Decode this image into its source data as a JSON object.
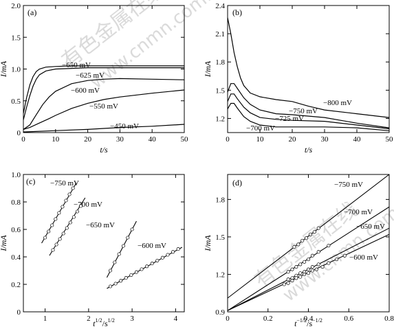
{
  "watermark": {
    "cn": "有色金属在线",
    "url": "www.cnmn.com.cn"
  },
  "chart_data": [
    {
      "panel": "(a)",
      "type": "line",
      "xlabel": "t/s",
      "ylabel": "I/mA",
      "xlim": [
        0,
        50
      ],
      "ylim": [
        0,
        2.0
      ],
      "xticks": [
        0,
        10,
        20,
        30,
        40,
        50
      ],
      "yticks": [
        0,
        0.5,
        1.0,
        1.5,
        2.0
      ],
      "ytick_labels": [
        "0",
        "0.5",
        "1.0",
        "1.5",
        "2.0"
      ],
      "series": [
        {
          "name": "−650 mV",
          "x": [
            0,
            1,
            2,
            3,
            4,
            5,
            7,
            10,
            15,
            20,
            30,
            40,
            50
          ],
          "y": [
            0.3,
            0.55,
            0.75,
            0.88,
            0.96,
            1.0,
            1.03,
            1.04,
            1.05,
            1.05,
            1.05,
            1.05,
            1.05
          ]
        },
        {
          "name": "−625 mV",
          "x": [
            0,
            1,
            2,
            3,
            4,
            5,
            7,
            10,
            15,
            20,
            30,
            40,
            50
          ],
          "y": [
            0.2,
            0.4,
            0.58,
            0.73,
            0.84,
            0.91,
            0.97,
            1.0,
            1.01,
            1.02,
            1.02,
            1.02,
            1.02
          ]
        },
        {
          "name": "−600 mV",
          "x": [
            0,
            2,
            4,
            6,
            8,
            10,
            15,
            20,
            25,
            30,
            40,
            50
          ],
          "y": [
            0.05,
            0.12,
            0.28,
            0.44,
            0.56,
            0.65,
            0.77,
            0.82,
            0.84,
            0.85,
            0.84,
            0.83
          ]
        },
        {
          "name": "−550 mV",
          "x": [
            0,
            2,
            5,
            8,
            10,
            15,
            20,
            25,
            30,
            40,
            50
          ],
          "y": [
            0.05,
            0.08,
            0.15,
            0.22,
            0.27,
            0.38,
            0.46,
            0.52,
            0.56,
            0.62,
            0.67
          ]
        },
        {
          "name": "−450 mV",
          "x": [
            0,
            10,
            20,
            30,
            40,
            50
          ],
          "y": [
            0.01,
            0.03,
            0.05,
            0.08,
            0.1,
            0.13
          ]
        }
      ]
    },
    {
      "panel": "(b)",
      "type": "line",
      "xlabel": "t/s",
      "ylabel": "I/mA",
      "xlim": [
        0,
        50
      ],
      "ylim": [
        1.05,
        2.4
      ],
      "xticks": [
        0,
        10,
        20,
        30,
        40,
        50
      ],
      "yticks": [
        1.2,
        1.5,
        1.8,
        2.1,
        2.4
      ],
      "ytick_labels": [
        "1.2",
        "1.5",
        "1.8",
        "2.1",
        "2.4"
      ],
      "series": [
        {
          "name": "−800 mV",
          "x": [
            0,
            1,
            2,
            3,
            4,
            5,
            7,
            10,
            15,
            20,
            25,
            30,
            40,
            50
          ],
          "y": [
            2.27,
            2.1,
            1.9,
            1.75,
            1.63,
            1.55,
            1.47,
            1.43,
            1.4,
            1.38,
            1.33,
            1.29,
            1.25,
            1.21
          ]
        },
        {
          "name": "−750 mV",
          "x": [
            0,
            1,
            2,
            3,
            5,
            7,
            10,
            15,
            20,
            30,
            40,
            50
          ],
          "y": [
            1.48,
            1.57,
            1.57,
            1.52,
            1.42,
            1.35,
            1.29,
            1.25,
            1.24,
            1.21,
            1.15,
            1.1
          ]
        },
        {
          "name": "−725 mV",
          "x": [
            0,
            1,
            2,
            3,
            5,
            7,
            10,
            15,
            20,
            30,
            40,
            50
          ],
          "y": [
            1.38,
            1.46,
            1.46,
            1.41,
            1.32,
            1.26,
            1.21,
            1.19,
            1.18,
            1.17,
            1.13,
            1.09
          ]
        },
        {
          "name": "−700 mV",
          "x": [
            0,
            1,
            2,
            3,
            5,
            7,
            10,
            15,
            20,
            30,
            40,
            50
          ],
          "y": [
            1.3,
            1.36,
            1.36,
            1.31,
            1.22,
            1.17,
            1.13,
            1.11,
            1.11,
            1.11,
            1.1,
            1.07
          ]
        }
      ]
    },
    {
      "panel": "(c)",
      "type": "scatter",
      "xlabel": "t^{1/2}/s^{1/2}",
      "xlabel_base": "t",
      "xlabel_sup": "1/2",
      "xlabel_unit": "/s",
      "xlabel_unit_sup": "1/2",
      "ylabel": "I/mA",
      "xlim": [
        0.5,
        4.2
      ],
      "ylim": [
        0,
        1.0
      ],
      "xticks": [
        1,
        2,
        3,
        4
      ],
      "yticks": [
        0,
        0.2,
        0.4,
        0.6,
        0.8,
        1.0
      ],
      "ytick_labels": [
        "0",
        "0.2",
        "0.4",
        "0.6",
        "0.8",
        "1.0"
      ],
      "series": [
        {
          "name": "−750 mV",
          "line_x": [
            0.92,
            1.72
          ],
          "line_y": [
            0.5,
            0.94
          ],
          "points_x": [
            1.0,
            1.08,
            1.16,
            1.24,
            1.32,
            1.4,
            1.48,
            1.56,
            1.64
          ],
          "points_y": [
            0.54,
            0.585,
            0.63,
            0.675,
            0.72,
            0.765,
            0.81,
            0.855,
            0.9
          ]
        },
        {
          "name": "−700 mV",
          "line_x": [
            1.1,
            1.92
          ],
          "line_y": [
            0.41,
            0.83
          ],
          "points_x": [
            1.18,
            1.26,
            1.34,
            1.42,
            1.5,
            1.58,
            1.66,
            1.74,
            1.82
          ],
          "points_y": [
            0.45,
            0.49,
            0.53,
            0.57,
            0.61,
            0.65,
            0.69,
            0.73,
            0.77
          ]
        },
        {
          "name": "−650 mV",
          "line_x": [
            2.42,
            3.1
          ],
          "line_y": [
            0.25,
            0.66
          ],
          "points_x": [
            2.5,
            2.6,
            2.7,
            2.8,
            2.9,
            3.0
          ],
          "points_y": [
            0.3,
            0.36,
            0.42,
            0.48,
            0.54,
            0.6
          ]
        },
        {
          "name": "−600 mV",
          "line_x": [
            2.42,
            4.15
          ],
          "line_y": [
            0.17,
            0.47
          ],
          "points_x": [
            2.5,
            2.62,
            2.74,
            2.86,
            2.98,
            3.1,
            3.22,
            3.34,
            3.46,
            3.58,
            3.7,
            3.82,
            3.94,
            4.06
          ],
          "points_y": [
            0.185,
            0.205,
            0.226,
            0.247,
            0.268,
            0.289,
            0.31,
            0.331,
            0.352,
            0.373,
            0.394,
            0.415,
            0.436,
            0.457
          ]
        }
      ]
    },
    {
      "panel": "(d)",
      "type": "scatter",
      "xlabel": "t^{-1/2}/s^{-1/2}",
      "xlabel_base": "t",
      "xlabel_sup": "−1/2",
      "xlabel_unit": "/s",
      "xlabel_unit_sup": "−1/2",
      "ylabel": "I/mA",
      "xlim": [
        0,
        0.8
      ],
      "ylim": [
        0.9,
        2.0
      ],
      "xticks": [
        0,
        0.2,
        0.4,
        0.6,
        0.8
      ],
      "yticks": [
        0.9,
        1.2,
        1.5,
        1.8
      ],
      "ytick_labels": [
        "0.9",
        "1.2",
        "1.5",
        "1.8"
      ],
      "series": [
        {
          "name": "−750 mV",
          "line_x": [
            0,
            0.8
          ],
          "line_y": [
            1.01,
            2.0
          ],
          "points_x": [
            0.33,
            0.35,
            0.37,
            0.39,
            0.41,
            0.43,
            0.45
          ],
          "points_y": [
            1.42,
            1.44,
            1.47,
            1.49,
            1.52,
            1.54,
            1.57
          ]
        },
        {
          "name": "−700 mV",
          "line_x": [
            0,
            0.8
          ],
          "line_y": [
            0.91,
            1.74
          ],
          "points_x": [
            0.3,
            0.32,
            0.34,
            0.36,
            0.38,
            0.4,
            0.42,
            0.45,
            0.5
          ],
          "points_y": [
            1.22,
            1.24,
            1.26,
            1.28,
            1.3,
            1.32,
            1.35,
            1.38,
            1.43
          ]
        },
        {
          "name": "−650 mV",
          "line_x": [
            0,
            0.8
          ],
          "line_y": [
            0.91,
            1.57
          ],
          "points_x": [
            0.3,
            0.32,
            0.34,
            0.36,
            0.38,
            0.4,
            0.42,
            0.45
          ],
          "points_y": [
            1.16,
            1.17,
            1.19,
            1.21,
            1.22,
            1.24,
            1.26,
            1.28
          ]
        },
        {
          "name": "−600 mV",
          "line_x": [
            0,
            0.8
          ],
          "line_y": [
            0.91,
            1.52
          ],
          "points_x": [
            0.28,
            0.3,
            0.32,
            0.34,
            0.36,
            0.38,
            0.4,
            0.42,
            0.44,
            0.47,
            0.5,
            0.54,
            0.58
          ],
          "points_y": [
            1.12,
            1.13,
            1.15,
            1.17,
            1.18,
            1.2,
            1.21,
            1.23,
            1.24,
            1.26,
            1.29,
            1.32,
            1.35
          ]
        }
      ]
    }
  ]
}
